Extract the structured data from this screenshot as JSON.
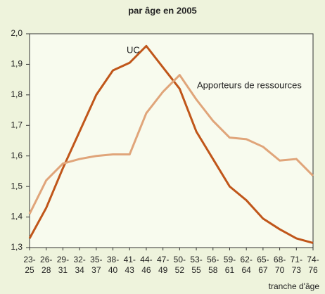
{
  "chart_data": {
    "type": "line",
    "title": "par âge en 2005",
    "x_label": "tranche d'âge",
    "categories": [
      "23-\n25",
      "26-\n28",
      "29-\n31",
      "32-\n34",
      "35-\n37",
      "38-\n40",
      "41-\n43",
      "44-\n46",
      "47-\n49",
      "50-\n52",
      "53-\n55",
      "56-\n58",
      "59-\n61",
      "62-\n64",
      "65-\n67",
      "68-\n70",
      "71-\n73",
      "74-\n76"
    ],
    "series": [
      {
        "name": "UC",
        "color": "#c0561a",
        "values": [
          1.33,
          1.43,
          1.56,
          1.68,
          1.8,
          1.88,
          1.905,
          1.96,
          1.89,
          1.82,
          1.68,
          1.59,
          1.5,
          1.455,
          1.395,
          1.36,
          1.33,
          1.315
        ]
      },
      {
        "name": "Apporteurs de ressources",
        "color": "#e0a57a",
        "values": [
          1.41,
          1.52,
          1.575,
          1.59,
          1.6,
          1.605,
          1.605,
          1.74,
          1.81,
          1.865,
          1.785,
          1.715,
          1.66,
          1.655,
          1.63,
          1.585,
          1.59,
          1.535
        ]
      }
    ],
    "ylim": [
      1.3,
      2.0
    ],
    "yticks": [
      {
        "value": 1.3,
        "label": "1,3"
      },
      {
        "value": 1.4,
        "label": "1,4"
      },
      {
        "value": 1.5,
        "label": "1,5"
      },
      {
        "value": 1.6,
        "label": "1,6"
      },
      {
        "value": 1.7,
        "label": "1,7"
      },
      {
        "value": 1.8,
        "label": "1,8"
      },
      {
        "value": 1.9,
        "label": "1,9"
      },
      {
        "value": 2.0,
        "label": "2,0"
      }
    ]
  }
}
